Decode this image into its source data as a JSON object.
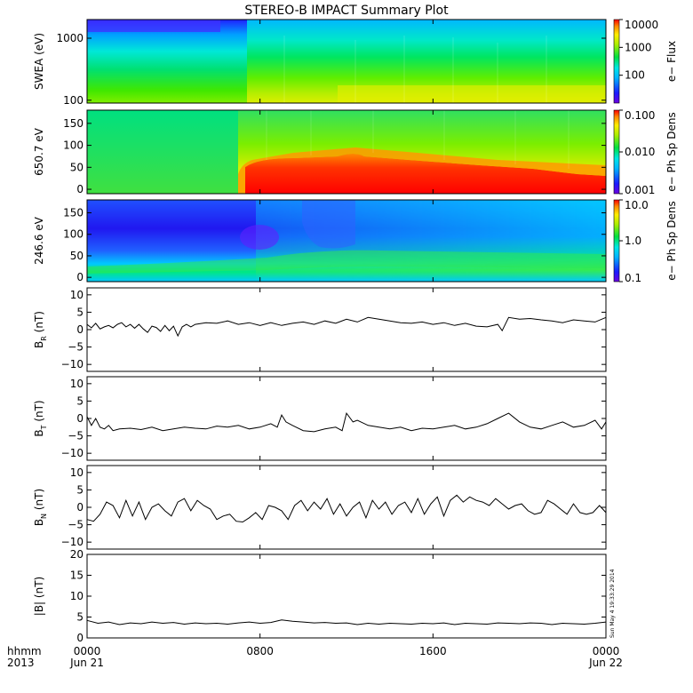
{
  "title": "STEREO-B IMPACT Summary Plot",
  "x_axis": {
    "ticks": [
      "0000",
      "0800",
      "1600",
      "0000"
    ],
    "hour_values": [
      0,
      8,
      16,
      24
    ],
    "dates": [
      "Jun 21",
      "",
      "",
      "Jun 22"
    ],
    "label_format": "hhmm",
    "year": "2013"
  },
  "timestamp": "Sun May  4 19:33:29 2014",
  "chart_data": [
    {
      "type": "heatmap",
      "ylabel": "SWEA (eV)",
      "colorbar_label": "e− Flux",
      "yscale": "log",
      "ylim": [
        90,
        2000
      ],
      "yticks": [
        "1000",
        "100"
      ],
      "ytick_values": [
        1000,
        100
      ],
      "cscale": "log",
      "crange": [
        10,
        10000
      ],
      "cticks": [
        "10000",
        "1000",
        "100"
      ],
      "ctick_values": [
        10000,
        1000,
        100
      ]
    },
    {
      "type": "heatmap",
      "ylabel": "650.7 eV",
      "colorbar_label": "e− Ph Sp Dens",
      "ylim": [
        -10,
        180
      ],
      "yticks": [
        "150",
        "100",
        "50",
        "0"
      ],
      "ytick_values": [
        150,
        100,
        50,
        0
      ],
      "cscale": "log",
      "crange": [
        0.001,
        0.1
      ],
      "cticks": [
        "0.100",
        "0.010",
        "0.001"
      ],
      "ctick_values": [
        0.1,
        0.01,
        0.001
      ]
    },
    {
      "type": "heatmap",
      "ylabel": "246.6 eV",
      "colorbar_label": "e− Ph Sp Dens",
      "ylim": [
        -10,
        180
      ],
      "yticks": [
        "150",
        "100",
        "50",
        "0"
      ],
      "ytick_values": [
        150,
        100,
        50,
        0
      ],
      "cscale": "log",
      "crange": [
        0.1,
        10
      ],
      "cticks": [
        "10.0",
        "1.0",
        "0.1"
      ],
      "ctick_values": [
        10,
        1,
        0.1
      ]
    },
    {
      "type": "line",
      "ylabel_main": "B",
      "ylabel_sub": "R",
      "ylabel_unit": " (nT)",
      "ylim": [
        -12,
        12
      ],
      "yticks": [
        "10",
        "5",
        "0",
        "−5",
        "−10"
      ],
      "ytick_values": [
        10,
        5,
        0,
        -5,
        -10
      ],
      "x_hours": [
        0.0,
        0.2,
        0.4,
        0.6,
        0.8,
        1.0,
        1.2,
        1.4,
        1.6,
        1.8,
        2.0,
        2.2,
        2.4,
        2.6,
        2.8,
        3.0,
        3.2,
        3.4,
        3.6,
        3.8,
        4.0,
        4.2,
        4.4,
        4.6,
        4.8,
        5.0,
        5.5,
        6.0,
        6.5,
        7.0,
        7.5,
        8.0,
        8.5,
        9.0,
        9.5,
        10.0,
        10.5,
        11.0,
        11.5,
        12.0,
        12.5,
        13.0,
        13.5,
        14.0,
        14.5,
        15.0,
        15.5,
        16.0,
        16.5,
        17.0,
        17.5,
        18.0,
        18.5,
        19.0,
        19.2,
        19.5,
        20.0,
        20.5,
        21.0,
        21.5,
        22.0,
        22.5,
        23.0,
        23.5,
        24.0
      ],
      "values": [
        1.5,
        0.5,
        1.8,
        0.2,
        0.8,
        1.2,
        0.5,
        1.5,
        2.0,
        0.8,
        1.5,
        0.4,
        1.5,
        0.2,
        -0.8,
        1.0,
        0.6,
        -0.5,
        1.2,
        -0.3,
        1.0,
        -1.8,
        0.8,
        1.5,
        0.8,
        1.5,
        2.0,
        1.8,
        2.5,
        1.5,
        2.0,
        1.2,
        2.0,
        1.2,
        1.8,
        2.2,
        1.5,
        2.5,
        1.8,
        3.0,
        2.2,
        3.5,
        3.0,
        2.5,
        2.0,
        1.8,
        2.2,
        1.5,
        2.0,
        1.2,
        1.8,
        1.0,
        0.8,
        1.5,
        -0.3,
        3.5,
        3.0,
        3.2,
        2.8,
        2.5,
        2.0,
        2.8,
        2.5,
        2.2,
        3.5
      ]
    },
    {
      "type": "line",
      "ylabel_main": "B",
      "ylabel_sub": "T",
      "ylabel_unit": " (nT)",
      "ylim": [
        -12,
        12
      ],
      "yticks": [
        "10",
        "5",
        "0",
        "−5",
        "−10"
      ],
      "ytick_values": [
        10,
        5,
        0,
        -5,
        -10
      ],
      "x_hours": [
        0.0,
        0.2,
        0.4,
        0.6,
        0.8,
        1.0,
        1.2,
        1.5,
        2.0,
        2.5,
        3.0,
        3.5,
        4.0,
        4.5,
        5.0,
        5.5,
        6.0,
        6.5,
        7.0,
        7.5,
        8.0,
        8.5,
        8.8,
        9.0,
        9.2,
        9.5,
        10.0,
        10.5,
        11.0,
        11.5,
        11.8,
        12.0,
        12.3,
        12.5,
        13.0,
        13.5,
        14.0,
        14.5,
        15.0,
        15.5,
        16.0,
        16.5,
        17.0,
        17.5,
        18.0,
        18.5,
        19.0,
        19.5,
        20.0,
        20.5,
        21.0,
        21.5,
        22.0,
        22.5,
        23.0,
        23.5,
        23.8,
        24.0
      ],
      "values": [
        0.5,
        -2.0,
        0.0,
        -2.5,
        -3.0,
        -2.0,
        -3.5,
        -3.0,
        -2.8,
        -3.2,
        -2.5,
        -3.5,
        -3.0,
        -2.5,
        -2.8,
        -3.0,
        -2.2,
        -2.5,
        -2.0,
        -3.0,
        -2.5,
        -1.5,
        -2.5,
        1.0,
        -1.0,
        -2.0,
        -3.5,
        -3.8,
        -3.0,
        -2.5,
        -3.5,
        1.5,
        -1.0,
        -0.5,
        -2.0,
        -2.5,
        -3.0,
        -2.5,
        -3.5,
        -2.8,
        -3.0,
        -2.5,
        -2.0,
        -3.0,
        -2.5,
        -1.5,
        0.0,
        1.5,
        -1.0,
        -2.5,
        -3.0,
        -2.0,
        -1.0,
        -2.5,
        -2.0,
        -0.5,
        -3.0,
        -1.0
      ]
    },
    {
      "type": "line",
      "ylabel_main": "B",
      "ylabel_sub": "N",
      "ylabel_unit": " (nT)",
      "ylim": [
        -12,
        12
      ],
      "yticks": [
        "10",
        "5",
        "0",
        "−5",
        "−10"
      ],
      "ytick_values": [
        10,
        5,
        0,
        -5,
        -10
      ],
      "x_hours": [
        0.0,
        0.3,
        0.6,
        0.9,
        1.2,
        1.5,
        1.8,
        2.1,
        2.4,
        2.7,
        3.0,
        3.3,
        3.6,
        3.9,
        4.2,
        4.5,
        4.8,
        5.1,
        5.4,
        5.7,
        6.0,
        6.3,
        6.6,
        6.9,
        7.2,
        7.5,
        7.8,
        8.1,
        8.4,
        8.7,
        9.0,
        9.3,
        9.6,
        9.9,
        10.2,
        10.5,
        10.8,
        11.1,
        11.4,
        11.7,
        12.0,
        12.3,
        12.6,
        12.9,
        13.2,
        13.5,
        13.8,
        14.1,
        14.4,
        14.7,
        15.0,
        15.3,
        15.6,
        15.9,
        16.2,
        16.5,
        16.8,
        17.1,
        17.4,
        17.7,
        18.0,
        18.3,
        18.6,
        18.9,
        19.2,
        19.5,
        19.8,
        20.1,
        20.4,
        20.7,
        21.0,
        21.3,
        21.6,
        21.9,
        22.2,
        22.5,
        22.8,
        23.1,
        23.4,
        23.7,
        24.0
      ],
      "values": [
        -3.5,
        -4.0,
        -2.0,
        1.5,
        0.5,
        -3.0,
        2.0,
        -2.5,
        1.5,
        -3.5,
        0.0,
        1.0,
        -1.0,
        -2.5,
        1.5,
        2.5,
        -1.0,
        2.0,
        0.5,
        -0.5,
        -3.5,
        -2.5,
        -2.0,
        -4.0,
        -4.2,
        -3.0,
        -1.5,
        -3.5,
        0.5,
        0.0,
        -1.0,
        -3.5,
        0.5,
        2.0,
        -1.0,
        1.5,
        -0.5,
        2.5,
        -2.0,
        1.0,
        -2.5,
        0.0,
        1.5,
        -3.0,
        2.0,
        -0.5,
        1.5,
        -2.0,
        0.5,
        1.5,
        -1.5,
        2.5,
        -2.0,
        1.0,
        3.0,
        -2.5,
        2.0,
        3.5,
        1.5,
        3.0,
        2.0,
        1.5,
        0.5,
        2.5,
        1.0,
        -0.5,
        0.5,
        1.0,
        -1.0,
        -2.0,
        -1.5,
        2.0,
        1.0,
        -0.5,
        -2.0,
        1.0,
        -1.5,
        -2.0,
        -1.5,
        0.5,
        -1.5
      ]
    },
    {
      "type": "line",
      "ylabel": "|B| (nT)",
      "ylim": [
        0,
        20
      ],
      "yticks": [
        "20",
        "15",
        "10",
        "5",
        "0"
      ],
      "ytick_values": [
        20,
        15,
        10,
        5,
        0
      ],
      "x_hours": [
        0.0,
        0.5,
        1.0,
        1.5,
        2.0,
        2.5,
        3.0,
        3.5,
        4.0,
        4.5,
        5.0,
        5.5,
        6.0,
        6.5,
        7.0,
        7.5,
        8.0,
        8.5,
        9.0,
        9.5,
        10.0,
        10.5,
        11.0,
        11.5,
        12.0,
        12.5,
        13.0,
        13.5,
        14.0,
        14.5,
        15.0,
        15.5,
        16.0,
        16.5,
        17.0,
        17.5,
        18.0,
        18.5,
        19.0,
        19.5,
        20.0,
        20.5,
        21.0,
        21.5,
        22.0,
        22.5,
        23.0,
        23.5,
        24.0
      ],
      "values": [
        4.2,
        3.5,
        3.8,
        3.2,
        3.6,
        3.4,
        3.8,
        3.5,
        3.7,
        3.3,
        3.6,
        3.4,
        3.5,
        3.3,
        3.6,
        3.8,
        3.5,
        3.7,
        4.3,
        4.0,
        3.8,
        3.6,
        3.7,
        3.5,
        3.6,
        3.2,
        3.5,
        3.3,
        3.5,
        3.4,
        3.3,
        3.5,
        3.4,
        3.6,
        3.2,
        3.5,
        3.4,
        3.3,
        3.6,
        3.5,
        3.4,
        3.6,
        3.5,
        3.2,
        3.5,
        3.4,
        3.3,
        3.5,
        3.8
      ]
    }
  ]
}
